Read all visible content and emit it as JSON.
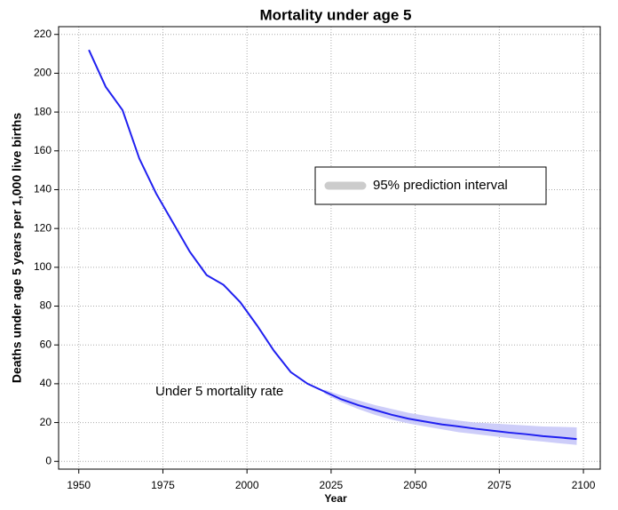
{
  "chart_data": {
    "type": "line",
    "title": "Mortality under age 5",
    "xlabel": "Year",
    "ylabel": "Deaths under age 5 years per 1,000 live births",
    "annotation": "Under 5 mortality rate",
    "x": [
      1953,
      1958,
      1963,
      1968,
      1973,
      1978,
      1983,
      1988,
      1993,
      1998,
      2003,
      2008,
      2013,
      2018,
      2023,
      2028,
      2033,
      2038,
      2043,
      2048,
      2053,
      2058,
      2063,
      2068,
      2073,
      2078,
      2083,
      2088,
      2093,
      2098
    ],
    "series": [
      {
        "name": "Under 5 mortality rate",
        "color": "#2020f0",
        "values": [
          212,
          193,
          181,
          156,
          138,
          123,
          108,
          96,
          91,
          82,
          70,
          57,
          46,
          40,
          36,
          32,
          29,
          26.5,
          24,
          22,
          20.5,
          19,
          18,
          16.8,
          15.8,
          14.8,
          14,
          13,
          12.3,
          11.5
        ]
      }
    ],
    "band": {
      "name": "95% prediction interval",
      "color": "#c8c8f8",
      "legend_color": "#cccccc",
      "lower": [
        null,
        null,
        null,
        null,
        null,
        null,
        null,
        null,
        null,
        null,
        null,
        null,
        null,
        null,
        35,
        30.5,
        27,
        24,
        21.5,
        19.5,
        18,
        16.5,
        15,
        14,
        13,
        12,
        11,
        10.2,
        9.3,
        8.5
      ],
      "upper": [
        null,
        null,
        null,
        null,
        null,
        null,
        null,
        null,
        null,
        null,
        null,
        null,
        null,
        null,
        37,
        34,
        31.5,
        29,
        27,
        25,
        23.5,
        22.2,
        21,
        20,
        19.5,
        19,
        18.5,
        18,
        17.8,
        17.5
      ]
    },
    "xlim": [
      1944,
      2105
    ],
    "ylim": [
      -4,
      224
    ],
    "xticks": [
      1950,
      1975,
      2000,
      2025,
      2050,
      2075,
      2100
    ],
    "yticks": [
      0,
      20,
      40,
      60,
      80,
      100,
      120,
      140,
      160,
      180,
      200,
      220
    ],
    "grid": true,
    "legend": "center"
  }
}
